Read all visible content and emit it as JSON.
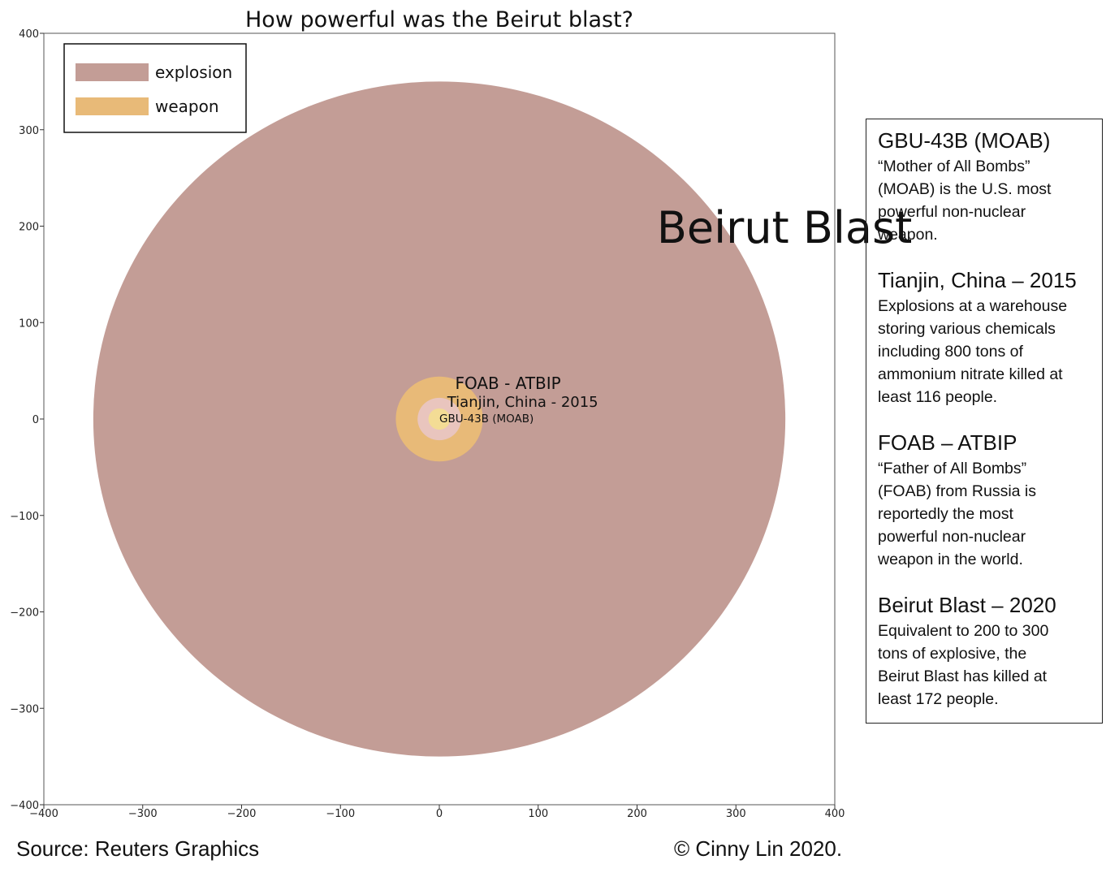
{
  "chart_data": {
    "type": "bubble",
    "title": "How powerful was the Beirut blast?",
    "xlim": [
      -400,
      400
    ],
    "ylim": [
      -400,
      400
    ],
    "xticks": [
      -400,
      -300,
      -200,
      -100,
      0,
      100,
      200,
      300,
      400
    ],
    "yticks": [
      400,
      300,
      200,
      100,
      0,
      -100,
      -200,
      -300,
      -400
    ],
    "grid": false,
    "legend": {
      "placement": "top-left",
      "entries": [
        {
          "label": "explosion",
          "color": "#c39d96"
        },
        {
          "label": "weapon",
          "color": "#e8ba78"
        }
      ]
    },
    "circles": [
      {
        "label": "Beirut Blast",
        "category": "explosion",
        "x": 0,
        "y": 0,
        "radius": 350,
        "color": "#c39d96",
        "label_x": 220,
        "label_y": 195
      },
      {
        "label": "FOAB - ATBIP",
        "category": "weapon",
        "x": 0,
        "y": 0,
        "radius": 44,
        "color": "#e8ba78",
        "label_x": 16,
        "label_y": 36
      },
      {
        "label": "Tianjin, China - 2015",
        "category": "explosion",
        "x": 0,
        "y": 0,
        "radius": 22,
        "color": "#e9c5be",
        "label_x": 8,
        "label_y": 17
      },
      {
        "label": "GBU-43B (MOAB)",
        "category": "weapon",
        "x": 0,
        "y": 0,
        "radius": 11,
        "color": "#f3dc95",
        "label_x": 0,
        "label_y": 0
      }
    ]
  },
  "info": {
    "sections": [
      {
        "heading": "GBU-43B (MOAB)",
        "body": "“Mother of All Bombs”\n(MOAB) is the U.S. most\npowerful non-nuclear\nweapon."
      },
      {
        "heading": "Tianjin, China – 2015",
        "body": "Explosions at a warehouse\nstoring various chemicals\nincluding 800 tons of\nammonium nitrate killed at\nleast 116 people."
      },
      {
        "heading": "FOAB – ATBIP",
        "body": "“Father of All Bombs”\n(FOAB) from Russia is\nreportedly the most\npowerful non-nuclear\nweapon in the world."
      },
      {
        "heading": "Beirut Blast – 2020",
        "body": "Equivalent to 200 to 300\ntons of explosive,  the\nBeirut Blast has killed at\nleast 172 people."
      }
    ]
  },
  "footer": {
    "source": "Source: Reuters Graphics",
    "copyright": "© Cinny Lin 2020."
  }
}
